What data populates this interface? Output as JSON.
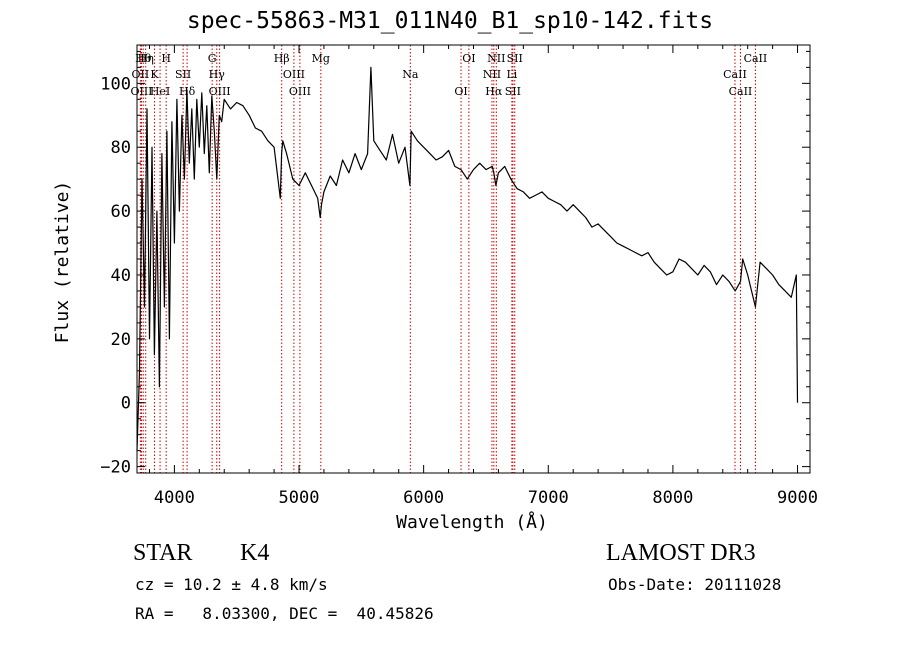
{
  "chart_data": {
    "type": "line",
    "title": "spec-55863-M31_011N40_B1_sp10-142.fits",
    "xlabel": "Wavelength (Å)",
    "ylabel": "Flux (relative)",
    "xlim": [
      3700,
      9100
    ],
    "ylim": [
      -22,
      112
    ],
    "xticks": [
      4000,
      5000,
      6000,
      7000,
      8000,
      9000
    ],
    "yticks": [
      -20,
      0,
      20,
      40,
      60,
      80,
      100
    ],
    "grid": false,
    "series": [
      {
        "name": "spectrum",
        "x": [
          3700,
          3720,
          3740,
          3760,
          3780,
          3800,
          3820,
          3840,
          3860,
          3880,
          3900,
          3920,
          3940,
          3960,
          3980,
          4000,
          4020,
          4040,
          4060,
          4080,
          4100,
          4120,
          4140,
          4160,
          4180,
          4200,
          4220,
          4240,
          4260,
          4280,
          4300,
          4320,
          4340,
          4360,
          4380,
          4400,
          4450,
          4500,
          4550,
          4600,
          4650,
          4700,
          4750,
          4800,
          4850,
          4860,
          4870,
          4900,
          4950,
          5000,
          5050,
          5100,
          5150,
          5170,
          5180,
          5200,
          5250,
          5300,
          5350,
          5400,
          5450,
          5500,
          5550,
          5577,
          5600,
          5650,
          5700,
          5750,
          5800,
          5850,
          5890,
          5900,
          5950,
          6000,
          6050,
          6100,
          6150,
          6200,
          6250,
          6300,
          6350,
          6400,
          6450,
          6500,
          6550,
          6563,
          6580,
          6600,
          6650,
          6700,
          6750,
          6800,
          6850,
          6900,
          6950,
          7000,
          7050,
          7100,
          7150,
          7200,
          7250,
          7300,
          7350,
          7400,
          7450,
          7500,
          7550,
          7600,
          7650,
          7700,
          7750,
          7800,
          7850,
          7900,
          7950,
          8000,
          8050,
          8100,
          8150,
          8200,
          8250,
          8300,
          8350,
          8400,
          8450,
          8500,
          8542,
          8560,
          8600,
          8662,
          8700,
          8750,
          8800,
          8850,
          8900,
          8950,
          8990,
          9000
        ],
        "y": [
          -15,
          10,
          70,
          30,
          92,
          20,
          80,
          15,
          60,
          5,
          78,
          30,
          85,
          20,
          88,
          50,
          95,
          60,
          90,
          70,
          98,
          75,
          92,
          70,
          95,
          80,
          97,
          78,
          93,
          72,
          96,
          85,
          70,
          90,
          88,
          95,
          92,
          94,
          93,
          90,
          86,
          85,
          82,
          80,
          64,
          78,
          82,
          78,
          70,
          68,
          72,
          68,
          64,
          58,
          62,
          66,
          71,
          68,
          76,
          72,
          78,
          73,
          78,
          105,
          82,
          79,
          76,
          84,
          75,
          80,
          68,
          85,
          82,
          80,
          78,
          76,
          77,
          79,
          74,
          73,
          70,
          73,
          75,
          73,
          74,
          72,
          68,
          72,
          74,
          70,
          67,
          66,
          64,
          65,
          66,
          64,
          63,
          62,
          60,
          62,
          60,
          58,
          55,
          56,
          54,
          52,
          50,
          49,
          48,
          47,
          46,
          47,
          44,
          42,
          40,
          41,
          45,
          44,
          42,
          40,
          43,
          41,
          37,
          40,
          38,
          35,
          38,
          45,
          40,
          30,
          44,
          42,
          40,
          37,
          35,
          33,
          40,
          0
        ]
      }
    ],
    "line_markers": [
      {
        "wl": 3750,
        "label": "Hθ"
      },
      {
        "wl": 3727,
        "label": "OII"
      },
      {
        "wl": 3736,
        "label": "OIII"
      },
      {
        "wl": 3770,
        "label": "Hη"
      },
      {
        "wl": 3840,
        "label": "K"
      },
      {
        "wl": 3885,
        "label": "HeI"
      },
      {
        "wl": 3934,
        "label": "H"
      },
      {
        "wl": 4070,
        "label": "SII"
      },
      {
        "wl": 4102,
        "label": "Hδ"
      },
      {
        "wl": 4303,
        "label": "G"
      },
      {
        "wl": 4340,
        "label": "Hγ"
      },
      {
        "wl": 4363,
        "label": "OIII"
      },
      {
        "wl": 4861,
        "label": "Hβ"
      },
      {
        "wl": 4959,
        "label": "OIII"
      },
      {
        "wl": 5007,
        "label": "OIII"
      },
      {
        "wl": 5175,
        "label": "Mg"
      },
      {
        "wl": 5893,
        "label": "Na"
      },
      {
        "wl": 6300,
        "label": "OI"
      },
      {
        "wl": 6363,
        "label": "OI"
      },
      {
        "wl": 6548,
        "label": "NII"
      },
      {
        "wl": 6563,
        "label": "Hα"
      },
      {
        "wl": 6583,
        "label": "NII"
      },
      {
        "wl": 6708,
        "label": "Li"
      },
      {
        "wl": 6716,
        "label": "SII"
      },
      {
        "wl": 6731,
        "label": "SII"
      },
      {
        "wl": 8498,
        "label": "CaII"
      },
      {
        "wl": 8542,
        "label": "CaII"
      },
      {
        "wl": 8662,
        "label": "CaII"
      }
    ]
  },
  "footer": {
    "class_label": "STAR",
    "subclass": "K4",
    "survey": "LAMOST DR3",
    "cz": "cz = 10.2 ± 4.8 km/s",
    "obs_date": "Obs-Date: 20111028",
    "coords": "RA =   8.03300, DEC =  40.45826"
  },
  "colors": {
    "axis": "#000000",
    "spectrum": "#000000",
    "marker": "#cc0000",
    "background": "#ffffff"
  }
}
